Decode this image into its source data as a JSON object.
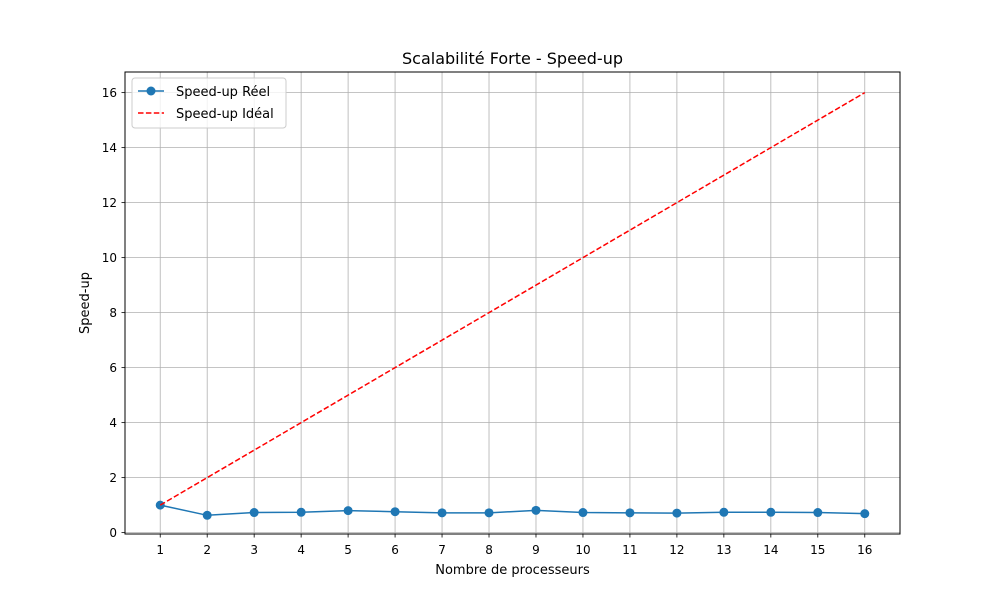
{
  "chart_data": {
    "type": "line",
    "title": "Scalabilité Forte - Speed-up",
    "xlabel": "Nombre de processeurs",
    "ylabel": "Speed-up",
    "x": [
      1,
      2,
      3,
      4,
      5,
      6,
      7,
      8,
      9,
      10,
      11,
      12,
      13,
      14,
      15,
      16
    ],
    "xticks": [
      "1",
      "2",
      "3",
      "4",
      "5",
      "6",
      "7",
      "8",
      "9",
      "10",
      "11",
      "12",
      "13",
      "14",
      "15",
      "16"
    ],
    "yticks": [
      "0",
      "2",
      "4",
      "6",
      "8",
      "10",
      "12",
      "14",
      "16"
    ],
    "xlim": [
      0.25,
      16.75
    ],
    "ylim": [
      -0.05,
      16.75
    ],
    "grid": true,
    "legend_position": "upper-left",
    "series": [
      {
        "name": "Speed-up Réel",
        "color": "#1f77b4",
        "style": "solid",
        "marker": "circle",
        "values": [
          1.0,
          0.63,
          0.73,
          0.74,
          0.8,
          0.76,
          0.72,
          0.72,
          0.81,
          0.73,
          0.72,
          0.71,
          0.74,
          0.74,
          0.73,
          0.69
        ]
      },
      {
        "name": "Speed-up Idéal",
        "color": "#ff0000",
        "style": "dashed",
        "marker": "none",
        "values": [
          1,
          2,
          3,
          4,
          5,
          6,
          7,
          8,
          9,
          10,
          11,
          12,
          13,
          14,
          15,
          16
        ]
      }
    ]
  }
}
